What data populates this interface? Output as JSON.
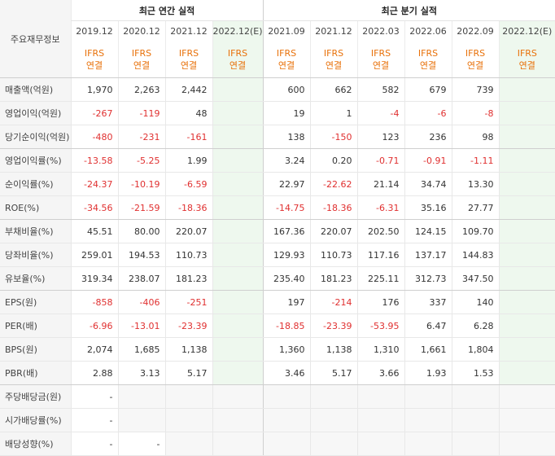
{
  "header": {
    "row_label": "주요재무정보",
    "annual_group": "최근 연간 실적",
    "quarterly_group": "최근 분기 실적",
    "periods": [
      "2019.12",
      "2020.12",
      "2021.12",
      "2022.12(E)",
      "2021.09",
      "2021.12",
      "2022.03",
      "2022.06",
      "2022.09",
      "2022.12(E)"
    ],
    "ifrs": "IFRS",
    "consol": "연결"
  },
  "rows": [
    {
      "label": "매출액(억원)",
      "values": [
        "1,970",
        "2,263",
        "2,442",
        "",
        "600",
        "662",
        "582",
        "679",
        "739",
        ""
      ]
    },
    {
      "label": "영업이익(억원)",
      "values": [
        "-267",
        "-119",
        "48",
        "",
        "19",
        "1",
        "-4",
        "-6",
        "-8",
        ""
      ]
    },
    {
      "label": "당기순이익(억원)",
      "values": [
        "-480",
        "-231",
        "-161",
        "",
        "138",
        "-150",
        "123",
        "236",
        "98",
        ""
      ]
    },
    {
      "label": "영업이익률(%)",
      "values": [
        "-13.58",
        "-5.25",
        "1.99",
        "",
        "3.24",
        "0.20",
        "-0.71",
        "-0.91",
        "-1.11",
        ""
      ]
    },
    {
      "label": "순이익률(%)",
      "values": [
        "-24.37",
        "-10.19",
        "-6.59",
        "",
        "22.97",
        "-22.62",
        "21.14",
        "34.74",
        "13.30",
        ""
      ]
    },
    {
      "label": "ROE(%)",
      "values": [
        "-34.56",
        "-21.59",
        "-18.36",
        "",
        "-14.75",
        "-18.36",
        "-6.31",
        "35.16",
        "27.77",
        ""
      ]
    },
    {
      "label": "부채비율(%)",
      "values": [
        "45.51",
        "80.00",
        "220.07",
        "",
        "167.36",
        "220.07",
        "202.50",
        "124.15",
        "109.70",
        ""
      ]
    },
    {
      "label": "당좌비율(%)",
      "values": [
        "259.01",
        "194.53",
        "110.73",
        "",
        "129.93",
        "110.73",
        "117.16",
        "137.17",
        "144.83",
        ""
      ]
    },
    {
      "label": "유보율(%)",
      "values": [
        "319.34",
        "238.07",
        "181.23",
        "",
        "235.40",
        "181.23",
        "225.11",
        "312.73",
        "347.50",
        ""
      ]
    },
    {
      "label": "EPS(원)",
      "values": [
        "-858",
        "-406",
        "-251",
        "",
        "197",
        "-214",
        "176",
        "337",
        "140",
        ""
      ]
    },
    {
      "label": "PER(배)",
      "values": [
        "-6.96",
        "-13.01",
        "-23.39",
        "",
        "-18.85",
        "-23.39",
        "-53.95",
        "6.47",
        "6.28",
        ""
      ]
    },
    {
      "label": "BPS(원)",
      "values": [
        "2,074",
        "1,685",
        "1,138",
        "",
        "1,360",
        "1,138",
        "1,310",
        "1,661",
        "1,804",
        ""
      ]
    },
    {
      "label": "PBR(배)",
      "values": [
        "2.88",
        "3.13",
        "5.17",
        "",
        "3.46",
        "5.17",
        "3.66",
        "1.93",
        "1.53",
        ""
      ]
    },
    {
      "label": "주당배당금(원)",
      "values": [
        "-",
        "",
        "",
        "",
        "",
        "",
        "",
        "",
        "",
        ""
      ]
    },
    {
      "label": "시가배당률(%)",
      "values": [
        "-",
        "",
        "",
        "",
        "",
        "",
        "",
        "",
        "",
        ""
      ]
    },
    {
      "label": "배당성향(%)",
      "values": [
        "-",
        "-",
        "",
        "",
        "",
        "",
        "",
        "",
        "",
        ""
      ]
    }
  ]
}
